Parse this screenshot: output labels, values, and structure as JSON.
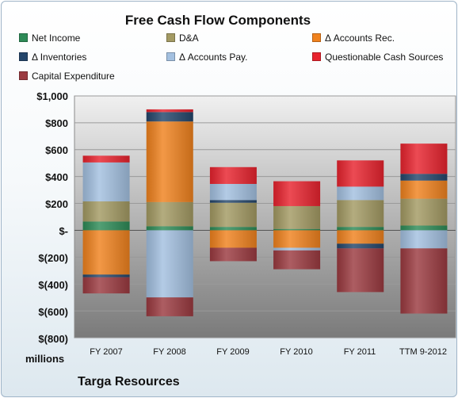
{
  "chart_data": {
    "type": "bar",
    "stacked": true,
    "title": "Free Cash Flow Components",
    "categories": [
      "FY 2007",
      "FY 2008",
      "FY 2009",
      "FY 2010",
      "FY 2011",
      "TTM 9-2012"
    ],
    "ylim": [
      -800,
      1000
    ],
    "y_ticks": [
      "$1,000",
      "$800",
      "$600",
      "$400",
      "$200",
      "$-",
      "$(200)",
      "$(400)",
      "$(600)",
      "$(800)"
    ],
    "unit_label": "millions",
    "grid": true,
    "legend_position": "top",
    "series": [
      {
        "name": "Net Income",
        "color": "#2e8b57",
        "values": [
          65,
          30,
          25,
          10,
          25,
          35
        ]
      },
      {
        "name": "D&A",
        "color": "#a39a63",
        "values": [
          150,
          180,
          180,
          170,
          200,
          200
        ]
      },
      {
        "name": "Δ Accounts Rec.",
        "color": "#f0821e",
        "values": [
          -330,
          600,
          -130,
          -130,
          -100,
          135
        ]
      },
      {
        "name": "Δ Inventories",
        "color": "#24466b",
        "values": [
          -20,
          70,
          20,
          0,
          -35,
          50
        ]
      },
      {
        "name": "Δ Accounts Pay.",
        "color": "#a3c0e0",
        "values": [
          290,
          -500,
          120,
          -20,
          100,
          -135
        ]
      },
      {
        "name": "Questionable Cash Sources",
        "color": "#e8232e",
        "values": [
          50,
          20,
          125,
          185,
          195,
          225
        ]
      },
      {
        "name": "Capital Expenditure",
        "color": "#9b3a40",
        "values": [
          -120,
          -140,
          -100,
          -140,
          -325,
          -485
        ]
      }
    ]
  },
  "footer": {
    "company": "Targa Resources"
  }
}
